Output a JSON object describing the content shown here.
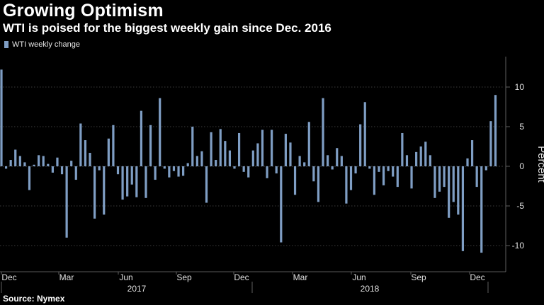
{
  "header": {
    "title": "Growing Optimism",
    "subtitle": "WTI is poised for the biggest weekly gain since Dec. 2016"
  },
  "footer": {
    "source": "Source: Nymex"
  },
  "colors": {
    "bar": "#7f9ec4",
    "background": "#000000",
    "grid": "#777777"
  },
  "chart_data": {
    "type": "bar",
    "title": "Growing Optimism",
    "ylabel": "Percent",
    "xlabel": "",
    "ylim": [
      -13,
      14
    ],
    "yticks": [
      -10,
      -5,
      0,
      5,
      10
    ],
    "ytick_labels": [
      "-10",
      "-5",
      "0",
      "5",
      "10"
    ],
    "grid": true,
    "legend": {
      "position": "top-left",
      "entries": [
        "WTI weekly change"
      ]
    },
    "month_labels": [
      "Dec",
      "Mar",
      "Jun",
      "Sep",
      "Dec",
      "Mar",
      "Jun",
      "Sep",
      "Dec"
    ],
    "year_labels": [
      "2017",
      "2018"
    ],
    "series": [
      {
        "name": "WTI weekly change",
        "values": [
          12.2,
          -0.3,
          0.8,
          2.1,
          1.3,
          0.5,
          -3.0,
          0.2,
          1.4,
          1.3,
          0.3,
          -0.8,
          1.1,
          -1.0,
          -9.0,
          0.7,
          -1.7,
          5.4,
          3.3,
          1.7,
          -6.6,
          -0.5,
          -6.1,
          3.5,
          5.2,
          -1.0,
          -4.2,
          -3.8,
          -2.3,
          -3.9,
          7.0,
          -4.0,
          5.2,
          -1.7,
          8.6,
          -0.3,
          -1.4,
          -0.6,
          -1.3,
          -1.2,
          0.4,
          5.0,
          1.3,
          1.9,
          -4.6,
          4.3,
          0.8,
          4.7,
          3.2,
          2.0,
          -0.3,
          4.2,
          -0.7,
          -1.4,
          2.0,
          2.9,
          4.6,
          -1.5,
          4.6,
          -0.9,
          -9.6,
          4.1,
          3.0,
          -3.6,
          1.3,
          0.5,
          5.6,
          -1.9,
          -4.5,
          8.6,
          1.4,
          -0.4,
          2.3,
          1.3,
          -4.7,
          -3.0,
          -0.9,
          5.3,
          8.1,
          -0.3,
          -3.6,
          -0.7,
          -2.4,
          -0.6,
          -1.3,
          -2.6,
          4.2,
          1.4,
          -2.8,
          1.8,
          2.5,
          3.1,
          1.4,
          -4.0,
          -3.2,
          -2.6,
          -6.5,
          -4.5,
          -6.1,
          -10.7,
          1.0,
          3.3,
          -2.6,
          -10.9,
          -0.5,
          5.7,
          9.0
        ]
      }
    ]
  }
}
